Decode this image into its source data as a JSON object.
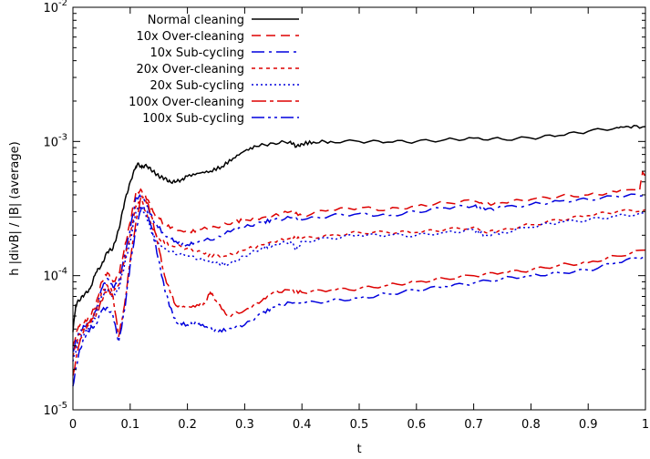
{
  "chart_data": {
    "type": "line",
    "xlabel": "t",
    "ylabel": "h |divB| / |B| (average)",
    "xlim": [
      0,
      1
    ],
    "ylim": [
      1e-05,
      0.01
    ],
    "yscale": "log",
    "x_ticks": [
      "0",
      "0.1",
      "0.2",
      "0.3",
      "0.4",
      "0.5",
      "0.6",
      "0.7",
      "0.8",
      "0.9",
      "1"
    ],
    "y_ticks": [
      {
        "base": "10",
        "exp": "-5"
      },
      {
        "base": "10",
        "exp": "-4"
      },
      {
        "base": "10",
        "exp": "-3"
      },
      {
        "base": "10",
        "exp": "-2"
      }
    ],
    "legend_position": "top-left",
    "grid": false,
    "series": [
      {
        "name": "Normal cleaning",
        "color": "#000000",
        "dash": "solid",
        "x": [
          0,
          0.005,
          0.01,
          0.02,
          0.03,
          0.04,
          0.05,
          0.06,
          0.07,
          0.08,
          0.09,
          0.1,
          0.11,
          0.115,
          0.12,
          0.125,
          0.13,
          0.14,
          0.15,
          0.16,
          0.17,
          0.18,
          0.19,
          0.2,
          0.22,
          0.24,
          0.26,
          0.28,
          0.3,
          0.32,
          0.35,
          0.38,
          0.39,
          0.4,
          0.42,
          0.45,
          0.5,
          0.55,
          0.6,
          0.65,
          0.7,
          0.75,
          0.8,
          0.85,
          0.9,
          0.95,
          0.97,
          1.0
        ],
        "y": [
          3.8e-05,
          6e-05,
          6.5e-05,
          7.2e-05,
          8e-05,
          0.000105,
          0.00012,
          0.00015,
          0.00016,
          0.00022,
          0.00035,
          0.0005,
          0.00065,
          0.00068,
          0.00064,
          0.00066,
          0.00065,
          0.0006,
          0.00055,
          0.00053,
          0.0005,
          0.0005,
          0.00052,
          0.00055,
          0.00058,
          0.0006,
          0.00065,
          0.00075,
          0.00085,
          0.00092,
          0.00097,
          0.001,
          0.00091,
          0.00096,
          0.00099,
          0.001,
          0.001,
          0.00099,
          0.001,
          0.00103,
          0.00106,
          0.00104,
          0.00106,
          0.00111,
          0.00119,
          0.00127,
          0.00129,
          0.00129
        ]
      },
      {
        "name": "10x Over-cleaning",
        "color": "#dd0000",
        "dash": "10,6",
        "x": [
          0,
          0.01,
          0.02,
          0.03,
          0.04,
          0.05,
          0.06,
          0.07,
          0.08,
          0.09,
          0.1,
          0.11,
          0.12,
          0.13,
          0.14,
          0.15,
          0.16,
          0.18,
          0.2,
          0.22,
          0.25,
          0.28,
          0.3,
          0.33,
          0.35,
          0.38,
          0.4,
          0.45,
          0.5,
          0.55,
          0.6,
          0.65,
          0.7,
          0.72,
          0.75,
          0.8,
          0.85,
          0.9,
          0.95,
          0.99,
          0.995,
          1.0
        ],
        "y": [
          3e-05,
          4.2e-05,
          4.5e-05,
          5e-05,
          6e-05,
          9e-05,
          0.000105,
          9e-05,
          0.0001,
          0.00016,
          0.00025,
          0.00042,
          0.00043,
          0.00037,
          0.0003,
          0.00027,
          0.00024,
          0.00022,
          0.00021,
          0.00022,
          0.00023,
          0.00025,
          0.00026,
          0.00027,
          0.00028,
          0.0003,
          0.00028,
          0.00031,
          0.00032,
          0.00031,
          0.00033,
          0.00035,
          0.00036,
          0.00034,
          0.00035,
          0.00037,
          0.00039,
          0.0004,
          0.00042,
          0.00043,
          0.0006,
          0.00052
        ]
      },
      {
        "name": "10x Sub-cycling",
        "color": "#0000dd",
        "dash": "14,5,3,5",
        "x": [
          0,
          0.01,
          0.02,
          0.03,
          0.04,
          0.05,
          0.06,
          0.07,
          0.08,
          0.09,
          0.1,
          0.11,
          0.12,
          0.13,
          0.14,
          0.15,
          0.16,
          0.18,
          0.2,
          0.22,
          0.25,
          0.28,
          0.3,
          0.33,
          0.35,
          0.38,
          0.4,
          0.45,
          0.5,
          0.55,
          0.6,
          0.65,
          0.7,
          0.72,
          0.75,
          0.8,
          0.85,
          0.9,
          0.95,
          1.0
        ],
        "y": [
          2.7e-05,
          3.8e-05,
          4.2e-05,
          4.6e-05,
          5.5e-05,
          8e-05,
          9.5e-05,
          8.2e-05,
          9e-05,
          0.00014,
          0.00022,
          0.00038,
          0.00039,
          0.00033,
          0.00026,
          0.00023,
          0.0002,
          0.00018,
          0.00017,
          0.00018,
          0.00019,
          0.00022,
          0.00023,
          0.00025,
          0.00026,
          0.00027,
          0.00026,
          0.00028,
          0.00029,
          0.00028,
          0.0003,
          0.00032,
          0.00033,
          0.00031,
          0.00032,
          0.00034,
          0.00036,
          0.00037,
          0.00039,
          0.0004
        ]
      },
      {
        "name": "20x Over-cleaning",
        "color": "#dd0000",
        "dash": "4,4",
        "x": [
          0,
          0.01,
          0.02,
          0.03,
          0.04,
          0.05,
          0.06,
          0.07,
          0.08,
          0.09,
          0.1,
          0.11,
          0.12,
          0.13,
          0.14,
          0.15,
          0.17,
          0.2,
          0.23,
          0.25,
          0.27,
          0.3,
          0.33,
          0.35,
          0.38,
          0.4,
          0.45,
          0.5,
          0.55,
          0.6,
          0.65,
          0.7,
          0.72,
          0.75,
          0.8,
          0.85,
          0.9,
          0.95,
          1.0
        ],
        "y": [
          2.5e-05,
          3.6e-05,
          4e-05,
          4.5e-05,
          5.5e-05,
          7.5e-05,
          8.5e-05,
          7.5e-05,
          8.5e-05,
          0.00013,
          0.0002,
          0.00033,
          0.00036,
          0.00028,
          0.00022,
          0.00019,
          0.00017,
          0.00016,
          0.000145,
          0.00014,
          0.00014,
          0.000155,
          0.00017,
          0.00018,
          0.00019,
          0.00019,
          0.0002,
          0.00021,
          0.00021,
          0.00021,
          0.00022,
          0.00023,
          0.00021,
          0.00022,
          0.00024,
          0.00026,
          0.00028,
          0.0003,
          0.00031
        ]
      },
      {
        "name": "20x Sub-cycling",
        "color": "#0000dd",
        "dash": "2,3",
        "x": [
          0,
          0.01,
          0.02,
          0.03,
          0.04,
          0.05,
          0.06,
          0.07,
          0.08,
          0.09,
          0.1,
          0.11,
          0.12,
          0.13,
          0.14,
          0.15,
          0.17,
          0.2,
          0.23,
          0.25,
          0.27,
          0.3,
          0.33,
          0.35,
          0.38,
          0.39,
          0.4,
          0.45,
          0.5,
          0.55,
          0.6,
          0.65,
          0.7,
          0.72,
          0.75,
          0.8,
          0.85,
          0.9,
          0.95,
          1.0
        ],
        "y": [
          2.3e-05,
          3.3e-05,
          3.7e-05,
          4.2e-05,
          5e-05,
          7e-05,
          8e-05,
          7e-05,
          8e-05,
          0.00012,
          0.00018,
          0.0003,
          0.00033,
          0.00026,
          0.0002,
          0.00017,
          0.00015,
          0.00014,
          0.00013,
          0.000125,
          0.00012,
          0.00014,
          0.00016,
          0.00017,
          0.00018,
          0.000155,
          0.00018,
          0.00019,
          0.0002,
          0.0002,
          0.0002,
          0.00021,
          0.00022,
          0.0002,
          0.00021,
          0.00023,
          0.00025,
          0.00026,
          0.00028,
          0.00029
        ]
      },
      {
        "name": "100x Over-cleaning",
        "color": "#dd0000",
        "dash": "16,4,4,4",
        "x": [
          0,
          0.01,
          0.02,
          0.03,
          0.04,
          0.05,
          0.06,
          0.07,
          0.08,
          0.09,
          0.1,
          0.11,
          0.12,
          0.13,
          0.14,
          0.15,
          0.16,
          0.17,
          0.18,
          0.2,
          0.22,
          0.23,
          0.24,
          0.25,
          0.27,
          0.3,
          0.33,
          0.35,
          0.38,
          0.4,
          0.45,
          0.5,
          0.55,
          0.6,
          0.65,
          0.7,
          0.75,
          0.8,
          0.85,
          0.9,
          0.95,
          1.0
        ],
        "y": [
          1.8e-05,
          3e-05,
          4e-05,
          4.5e-05,
          5e-05,
          6.5e-05,
          8e-05,
          7e-05,
          3.5e-05,
          6e-05,
          0.00013,
          0.00025,
          0.0004,
          0.00035,
          0.00025,
          0.00016,
          0.0001,
          7.5e-05,
          6e-05,
          5.8e-05,
          6e-05,
          6.2e-05,
          7.5e-05,
          6.5e-05,
          5e-05,
          5.5e-05,
          6.5e-05,
          7.5e-05,
          7.8e-05,
          7.5e-05,
          7.8e-05,
          8e-05,
          8.5e-05,
          9e-05,
          9.5e-05,
          0.0001,
          0.000105,
          0.00011,
          0.00012,
          0.000125,
          0.00014,
          0.000155
        ]
      },
      {
        "name": "100x Sub-cycling",
        "color": "#0000dd",
        "dash": "14,4,3,4,3,4",
        "x": [
          0,
          0.01,
          0.02,
          0.03,
          0.04,
          0.05,
          0.06,
          0.07,
          0.08,
          0.09,
          0.1,
          0.11,
          0.12,
          0.13,
          0.14,
          0.15,
          0.16,
          0.17,
          0.18,
          0.2,
          0.22,
          0.24,
          0.25,
          0.27,
          0.3,
          0.33,
          0.35,
          0.38,
          0.4,
          0.45,
          0.5,
          0.55,
          0.6,
          0.65,
          0.7,
          0.75,
          0.8,
          0.85,
          0.9,
          0.95,
          1.0
        ],
        "y": [
          1.5e-05,
          2.6e-05,
          3.5e-05,
          4e-05,
          4.3e-05,
          5.5e-05,
          5.8e-05,
          5e-05,
          3.2e-05,
          5.5e-05,
          0.00012,
          0.00022,
          0.00033,
          0.0003,
          0.0002,
          0.00013,
          8e-05,
          5.8e-05,
          4.5e-05,
          4.3e-05,
          4.4e-05,
          4e-05,
          3.8e-05,
          4e-05,
          4.3e-05,
          5.2e-05,
          5.8e-05,
          6.3e-05,
          6.2e-05,
          6.5e-05,
          6.8e-05,
          7.3e-05,
          7.8e-05,
          8.3e-05,
          8.8e-05,
          9.5e-05,
          0.0001,
          0.000105,
          0.00011,
          0.000125,
          0.00014
        ]
      }
    ]
  }
}
